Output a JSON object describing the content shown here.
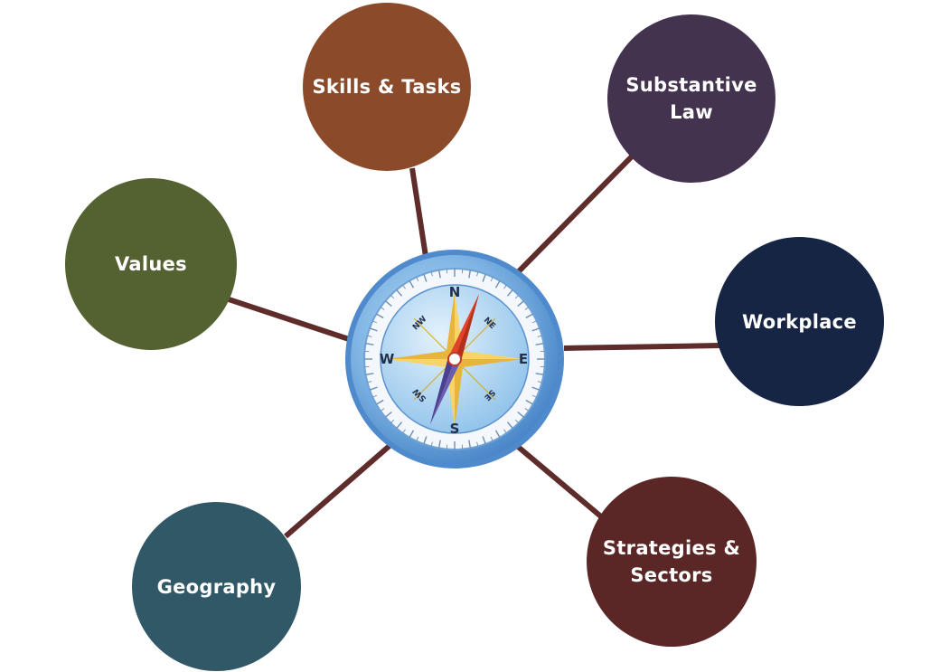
{
  "diagram": {
    "center": {
      "icon": "compass-icon",
      "directions": {
        "n": "N",
        "s": "S",
        "e": "E",
        "w": "W",
        "ne": "NE",
        "nw": "NW",
        "se": "SE",
        "sw": "SW"
      }
    },
    "nodes": [
      {
        "id": "skills",
        "label": "Skills & Tasks",
        "color": "#8b4b2b"
      },
      {
        "id": "law",
        "label": "Substantive\nLaw",
        "color": "#43334f"
      },
      {
        "id": "values",
        "label": "Values",
        "color": "#546231"
      },
      {
        "id": "workplace",
        "label": "Workplace",
        "color": "#162544"
      },
      {
        "id": "strategies",
        "label": "Strategies &\nSectors",
        "color": "#5a2726"
      },
      {
        "id": "geography",
        "label": "Geography",
        "color": "#305866"
      }
    ],
    "connector_color": "#5e2c2a"
  }
}
